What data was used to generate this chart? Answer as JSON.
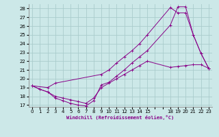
{
  "bg_color": "#cce8e8",
  "grid_color": "#aacccc",
  "line_color": "#880088",
  "xlabel": "Windchill (Refroidissement éolien,°C)",
  "xlim": [
    -0.5,
    23.5
  ],
  "ylim": [
    16.8,
    28.5
  ],
  "yticks": [
    17,
    18,
    19,
    20,
    21,
    22,
    23,
    24,
    25,
    26,
    27,
    28
  ],
  "xticks": [
    0,
    1,
    2,
    3,
    4,
    5,
    6,
    7,
    8,
    9,
    10,
    11,
    12,
    13,
    14,
    15,
    16,
    17,
    18,
    19,
    20,
    21,
    22,
    23
  ],
  "xticklabels": [
    "0",
    "1",
    "2",
    "3",
    "4",
    "5",
    "6",
    "7",
    "8",
    "9",
    "10",
    "11",
    "12",
    "13",
    "14",
    "15",
    "",
    "",
    "18",
    "19",
    "20",
    "21",
    "22",
    "23"
  ],
  "line1_x": [
    0,
    1,
    2,
    3,
    4,
    5,
    6,
    7,
    8,
    9,
    10,
    11,
    12,
    13,
    14,
    15,
    18,
    19,
    20,
    21,
    22,
    23
  ],
  "line1_y": [
    19.2,
    18.8,
    18.5,
    17.8,
    17.5,
    17.2,
    17.0,
    16.9,
    17.5,
    19.3,
    19.6,
    20.3,
    21.0,
    21.8,
    22.5,
    23.2,
    26.1,
    28.2,
    28.2,
    25.0,
    22.9,
    21.2
  ],
  "line2_x": [
    0,
    2,
    3,
    9,
    10,
    11,
    12,
    13,
    14,
    15,
    18,
    19,
    20,
    21,
    22,
    23
  ],
  "line2_y": [
    19.2,
    19.0,
    19.5,
    20.5,
    21.0,
    21.8,
    22.5,
    23.2,
    24.0,
    25.0,
    28.1,
    27.5,
    27.5,
    25.0,
    22.9,
    21.2
  ],
  "line3_x": [
    0,
    1,
    2,
    3,
    4,
    5,
    6,
    7,
    8,
    9,
    10,
    11,
    12,
    13,
    14,
    15,
    18,
    19,
    20,
    21,
    22,
    23
  ],
  "line3_y": [
    19.2,
    18.8,
    18.5,
    18.0,
    17.8,
    17.6,
    17.4,
    17.2,
    17.8,
    19.0,
    19.5,
    20.0,
    20.5,
    21.0,
    21.5,
    22.0,
    21.3,
    21.4,
    21.5,
    21.6,
    21.6,
    21.2
  ]
}
